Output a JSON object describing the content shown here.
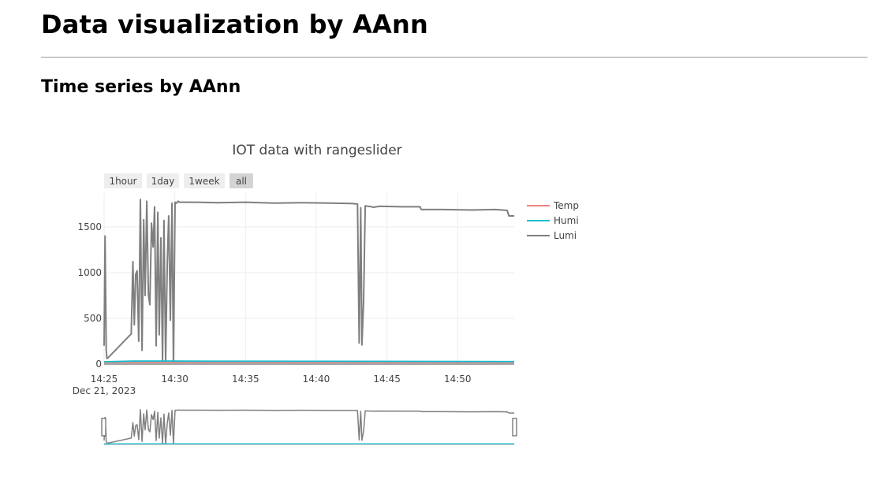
{
  "page": {
    "title": "Data visualization by AAnn",
    "section_title": "Time series by AAnn"
  },
  "chart_data": {
    "type": "line",
    "title": "IOT data with rangeslider",
    "xlabel": "",
    "ylabel": "",
    "x_axis_type": "date",
    "date_label": "Dec 21, 2023",
    "xlim": [
      "2023-12-21 14:25:00",
      "2023-12-21 14:54:00"
    ],
    "ylim": [
      0,
      1870
    ],
    "x_ticks": [
      "14:25",
      "14:30",
      "14:35",
      "14:40",
      "14:45",
      "14:50"
    ],
    "y_ticks": [
      0,
      500,
      1000,
      1500
    ],
    "grid": true,
    "legend": "right",
    "range_selector": {
      "buttons": [
        "1hour",
        "1day",
        "1week",
        "all"
      ],
      "active": "all"
    },
    "range_slider": true,
    "series": [
      {
        "name": "Temp",
        "color": "#F08080",
        "x": [
          "2023-12-21 14:25:00",
          "2023-12-21 14:30:00",
          "2023-12-21 14:40:00",
          "2023-12-21 14:50:00",
          "2023-12-21 14:54:00"
        ],
        "y": [
          18,
          18,
          18,
          18,
          18
        ]
      },
      {
        "name": "Humi",
        "color": "#17BECF",
        "x": [
          "2023-12-21 14:25:00",
          "2023-12-21 14:27:00",
          "2023-12-21 14:30:00",
          "2023-12-21 14:40:00",
          "2023-12-21 14:50:00",
          "2023-12-21 14:54:00"
        ],
        "y": [
          25,
          32,
          32,
          30,
          28,
          27
        ]
      },
      {
        "name": "Lumi",
        "color": "#7F7F7F",
        "x": [
          "2023-12-21 14:25:00",
          "2023-12-21 14:25:04",
          "2023-12-21 14:25:09",
          "2023-12-21 14:25:12",
          "2023-12-21 14:25:17",
          "2023-12-21 14:26:55",
          "2023-12-21 14:27:02",
          "2023-12-21 14:27:08",
          "2023-12-21 14:27:14",
          "2023-12-21 14:27:20",
          "2023-12-21 14:27:27",
          "2023-12-21 14:27:34",
          "2023-12-21 14:27:41",
          "2023-12-21 14:27:48",
          "2023-12-21 14:27:54",
          "2023-12-21 14:28:01",
          "2023-12-21 14:28:08",
          "2023-12-21 14:28:14",
          "2023-12-21 14:28:21",
          "2023-12-21 14:28:28",
          "2023-12-21 14:28:34",
          "2023-12-21 14:28:41",
          "2023-12-21 14:28:48",
          "2023-12-21 14:28:54",
          "2023-12-21 14:29:01",
          "2023-12-21 14:29:08",
          "2023-12-21 14:29:14",
          "2023-12-21 14:29:21",
          "2023-12-21 14:29:28",
          "2023-12-21 14:29:34",
          "2023-12-21 14:29:41",
          "2023-12-21 14:29:48",
          "2023-12-21 14:29:54",
          "2023-12-21 14:30:01",
          "2023-12-21 14:30:08",
          "2023-12-21 14:30:14",
          "2023-12-21 14:30:21",
          "2023-12-21 14:31:30",
          "2023-12-21 14:33:00",
          "2023-12-21 14:35:00",
          "2023-12-21 14:37:00",
          "2023-12-21 14:39:00",
          "2023-12-21 14:41:00",
          "2023-12-21 14:42:30",
          "2023-12-21 14:42:55",
          "2023-12-21 14:43:02",
          "2023-12-21 14:43:09",
          "2023-12-21 14:43:14",
          "2023-12-21 14:43:21",
          "2023-12-21 14:43:28",
          "2023-12-21 14:43:55",
          "2023-12-21 14:44:02",
          "2023-12-21 14:44:30",
          "2023-12-21 14:46:00",
          "2023-12-21 14:47:20",
          "2023-12-21 14:47:25",
          "2023-12-21 14:49:00",
          "2023-12-21 14:51:00",
          "2023-12-21 14:52:40",
          "2023-12-21 14:53:30",
          "2023-12-21 14:53:38",
          "2023-12-21 14:54:00"
        ],
        "y": [
          200,
          1400,
          150,
          60,
          70,
          330,
          1120,
          430,
          980,
          1020,
          250,
          1800,
          150,
          1580,
          750,
          1780,
          760,
          650,
          1540,
          1280,
          1720,
          200,
          1660,
          320,
          1380,
          40,
          1570,
          30,
          1100,
          1620,
          480,
          1760,
          20,
          1770,
          1760,
          1780,
          1770,
          1770,
          1765,
          1770,
          1760,
          1765,
          1760,
          1755,
          1750,
          230,
          1710,
          210,
          680,
          1730,
          1720,
          1715,
          1725,
          1720,
          1720,
          1690,
          1690,
          1685,
          1690,
          1680,
          1620,
          1620
        ]
      }
    ]
  }
}
